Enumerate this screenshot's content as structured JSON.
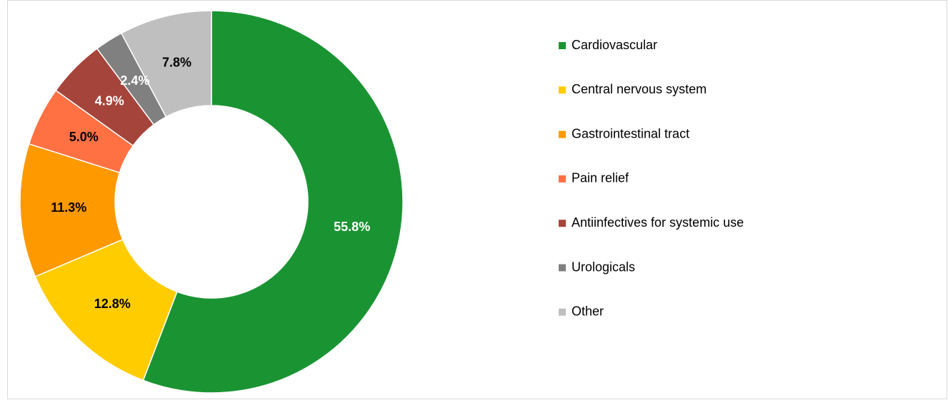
{
  "chart_data": {
    "type": "donut",
    "categories": [
      "Cardiovascular",
      "Central nervous system",
      "Gastrointestinal tract",
      "Pain relief",
      "Antiinfectives for systemic use",
      "Urologicals",
      "Other"
    ],
    "values": [
      55.8,
      12.8,
      11.3,
      5.0,
      4.9,
      2.4,
      7.8
    ],
    "value_labels": [
      "55.8%",
      "12.8%",
      "11.3%",
      "5.0%",
      "4.9%",
      "2.4%",
      "7.8%"
    ],
    "colors": [
      "#1a9432",
      "#ffcc00",
      "#ff9900",
      "#ff7043",
      "#a5443a",
      "#808080",
      "#bfbfbf"
    ],
    "label_colors": [
      "#ffffff",
      "#000000",
      "#000000",
      "#000000",
      "#ffffff",
      "#ffffff",
      "#000000"
    ],
    "legend": "right"
  }
}
